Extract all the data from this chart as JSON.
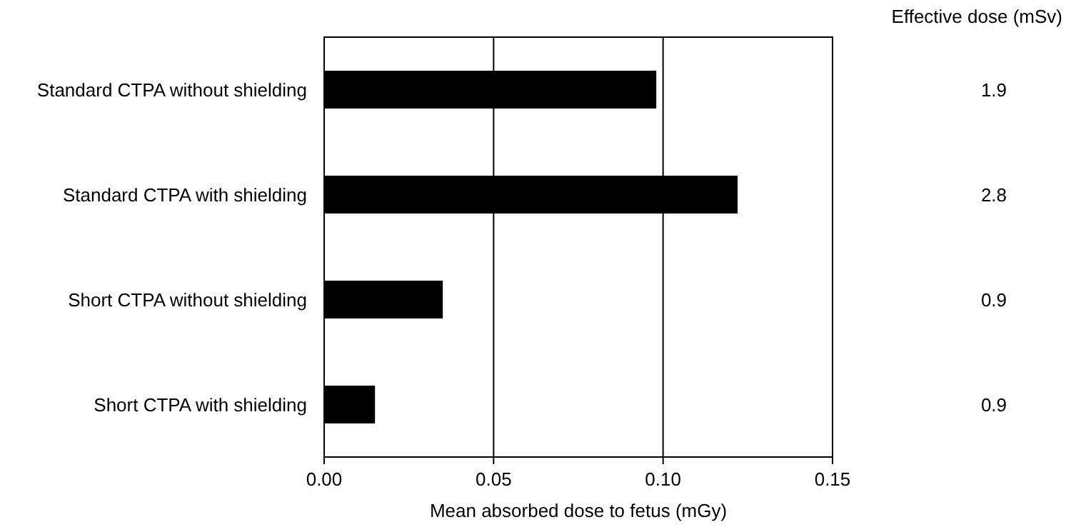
{
  "chart_data": {
    "type": "bar",
    "orientation": "horizontal",
    "xlabel": "Mean absorbed dose to fetus (mGy)",
    "categories": [
      "Standard CTPA without shielding",
      "Standard CTPA with shielding",
      "Short CTPA without shielding",
      "Short CTPA with shielding"
    ],
    "values": [
      0.098,
      0.122,
      0.035,
      0.015
    ],
    "color": "#000000",
    "xlim": [
      0,
      0.15
    ],
    "xticks": [
      {
        "value": 0,
        "label": "0.00"
      },
      {
        "value": 0.05,
        "label": "0.05"
      },
      {
        "value": 0.1,
        "label": "0.10"
      },
      {
        "value": 0.15,
        "label": "0.15"
      }
    ],
    "grid": "x",
    "annotations": [
      "Effective dose (mSv)",
      "1.9",
      "2.8",
      "0.9",
      "0.9"
    ]
  }
}
